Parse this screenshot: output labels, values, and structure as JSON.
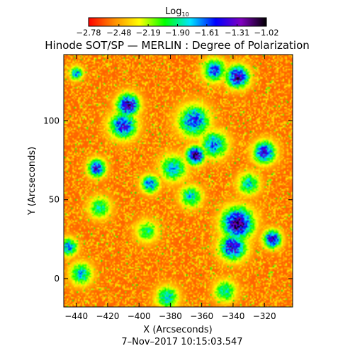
{
  "chart_data": {
    "type": "heatmap",
    "title": "Hinode SOT/SP — MERLIN : Degree of Polarization",
    "subtitle": "7–Nov–2017 10:15:03.547",
    "xlabel": "X (Arcseconds)",
    "ylabel": "Y (Arcseconds)",
    "xlim": [
      -448,
      -302
    ],
    "ylim": [
      -18,
      142
    ],
    "x_ticks": [
      -440,
      -420,
      -400,
      -380,
      -360,
      -340,
      -320
    ],
    "y_ticks": [
      0,
      50,
      100
    ],
    "x_tick_labels": [
      "−440",
      "−420",
      "−400",
      "−380",
      "−360",
      "−340",
      "−320"
    ],
    "y_tick_labels": [
      "0",
      "50",
      "100"
    ],
    "grid": false,
    "colorbar": {
      "label_base": "Log",
      "label_sub": "10",
      "range": [
        -2.78,
        -1.02
      ],
      "ticks": [
        -2.78,
        -2.48,
        -2.19,
        -1.9,
        -1.61,
        -1.31,
        -1.02
      ],
      "tick_labels": [
        "−2.78",
        "−2.48",
        "−2.19",
        "−1.90",
        "−1.61",
        "−1.31",
        "−1.02"
      ],
      "colormap": [
        "#ff0000",
        "#ff8c00",
        "#ffff00",
        "#00ff00",
        "#00e5ff",
        "#0000ff",
        "#8000c0",
        "#000000"
      ],
      "placement": "top"
    },
    "background_level": -2.6,
    "features": [
      {
        "x": -364,
        "y": 78,
        "value": -1.02,
        "sigma": 4
      },
      {
        "x": -337,
        "y": 35,
        "value": -1.1,
        "sigma": 7
      },
      {
        "x": -340,
        "y": 20,
        "value": -1.3,
        "sigma": 6
      },
      {
        "x": -407,
        "y": 110,
        "value": -1.2,
        "sigma": 5
      },
      {
        "x": -410,
        "y": 97,
        "value": -1.4,
        "sigma": 6
      },
      {
        "x": -427,
        "y": 70,
        "value": -1.35,
        "sigma": 4
      },
      {
        "x": -337,
        "y": 128,
        "value": -1.2,
        "sigma": 5
      },
      {
        "x": -352,
        "y": 132,
        "value": -1.5,
        "sigma": 5
      },
      {
        "x": -365,
        "y": 100,
        "value": -1.5,
        "sigma": 7
      },
      {
        "x": -320,
        "y": 80,
        "value": -1.35,
        "sigma": 5
      },
      {
        "x": -315,
        "y": 25,
        "value": -1.25,
        "sigma": 4
      },
      {
        "x": -352,
        "y": 85,
        "value": -1.6,
        "sigma": 6
      },
      {
        "x": -393,
        "y": 60,
        "value": -1.5,
        "sigma": 4
      },
      {
        "x": -378,
        "y": 70,
        "value": -1.7,
        "sigma": 6
      },
      {
        "x": -445,
        "y": 20,
        "value": -1.6,
        "sigma": 4
      },
      {
        "x": -437,
        "y": 3,
        "value": -1.7,
        "sigma": 5
      },
      {
        "x": -382,
        "y": -12,
        "value": -1.7,
        "sigma": 5
      },
      {
        "x": -345,
        "y": -8,
        "value": -1.8,
        "sigma": 5
      },
      {
        "x": -367,
        "y": 52,
        "value": -1.75,
        "sigma": 5
      },
      {
        "x": -440,
        "y": 130,
        "value": -1.6,
        "sigma": 3
      },
      {
        "x": -425,
        "y": 45,
        "value": -1.85,
        "sigma": 5
      },
      {
        "x": -330,
        "y": 60,
        "value": -1.75,
        "sigma": 5
      },
      {
        "x": -395,
        "y": 30,
        "value": -1.9,
        "sigma": 5
      }
    ]
  }
}
